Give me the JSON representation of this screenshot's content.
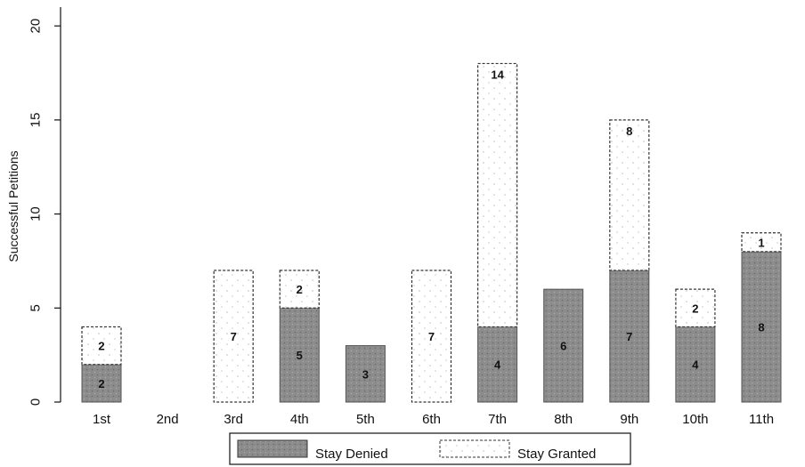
{
  "chart_data": {
    "type": "bar",
    "stacked": true,
    "categories": [
      "1st",
      "2nd",
      "3rd",
      "4th",
      "5th",
      "6th",
      "7th",
      "8th",
      "9th",
      "10th",
      "11th"
    ],
    "series": [
      {
        "name": "Stay Denied",
        "values": [
          2,
          0,
          0,
          5,
          3,
          0,
          4,
          6,
          7,
          4,
          8
        ],
        "labels": [
          "2",
          "",
          "",
          "5",
          "3",
          "",
          "4",
          "6",
          "7",
          "4",
          "8"
        ],
        "color": "#8c8c8c"
      },
      {
        "name": "Stay Granted",
        "values": [
          2,
          0,
          7,
          2,
          0,
          7,
          14,
          0,
          8,
          2,
          1
        ],
        "labels": [
          "2",
          "",
          "7",
          "2",
          "",
          "7",
          "14",
          "",
          "8",
          "2",
          "1"
        ],
        "color": "#ffffff"
      }
    ],
    "title": "",
    "xlabel": "",
    "ylabel": "Successful Petitions",
    "ylim": [
      0,
      21
    ],
    "yticks": [
      0,
      5,
      10,
      15,
      20
    ],
    "ytick_labels": [
      "0",
      "5",
      "10",
      "15",
      "20"
    ],
    "grid": false,
    "legend_position": "bottom"
  }
}
